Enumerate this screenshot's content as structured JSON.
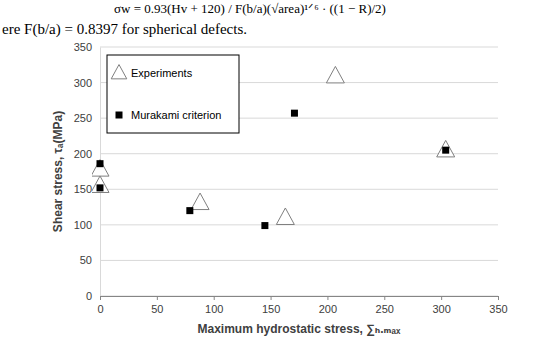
{
  "chart_data": {
    "type": "scatter",
    "annotations": [
      "σw = 0.93(Hv + 120) / F(b/a)(√area)¹ᐟ⁶ · ((1 − R)/2)",
      "ere F(b/a) = 0.8397 for spherical defects."
    ],
    "x_label": "Maximum hydrostatic stress, ∑ₕ.ₘₐₓ",
    "y_label": "Shear stress, τₐ(MPa)",
    "series": [
      {
        "name": "Experiments",
        "color": "#7f7f7f",
        "marker": "triangle",
        "x": [
          0,
          0,
          88,
          163,
          207,
          304
        ],
        "values": [
          178,
          155,
          131,
          110,
          309,
          205
        ]
      },
      {
        "name": "Murakami criterion",
        "color": "#000000",
        "marker": "square",
        "x": [
          0,
          0,
          79,
          145,
          171,
          304
        ],
        "values": [
          186,
          152,
          120,
          99,
          257,
          205
        ]
      }
    ],
    "xlim": [
      0,
      350
    ],
    "xticks": [
      0,
      50,
      100,
      150,
      200,
      250,
      300,
      350
    ],
    "ylim": [
      0,
      350
    ],
    "yticks": [
      0,
      50,
      100,
      150,
      200,
      250,
      300,
      350
    ],
    "grid": true,
    "legend": "upper left"
  }
}
